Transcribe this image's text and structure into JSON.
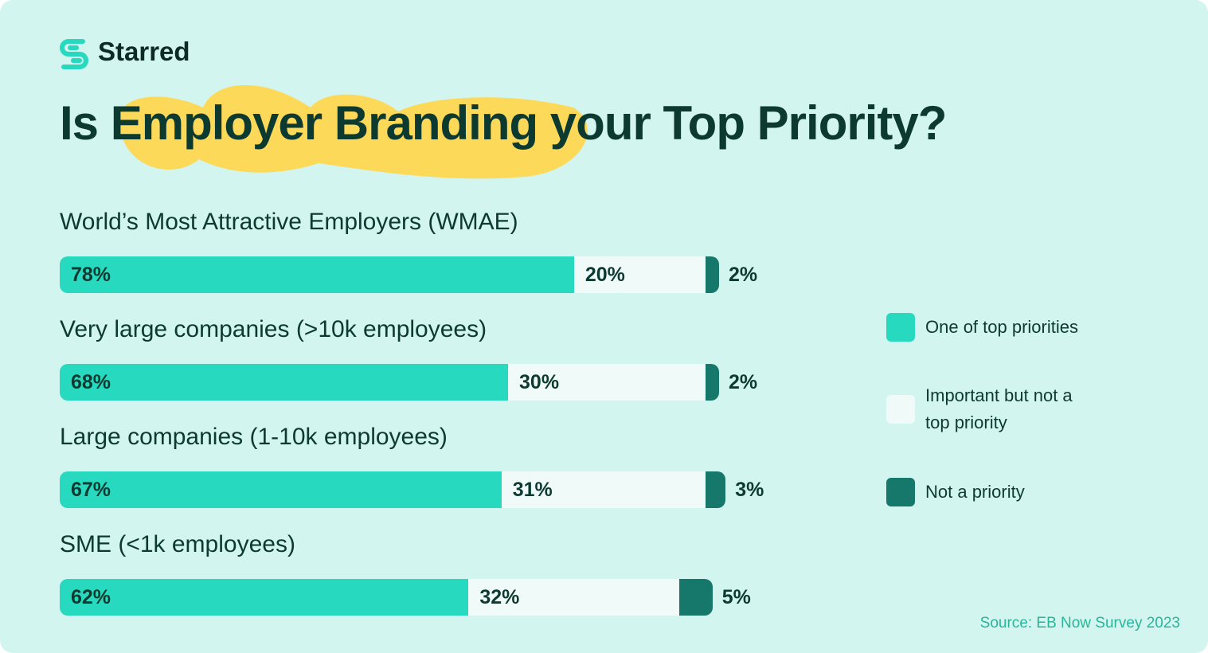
{
  "brand": "Starred",
  "source": "Source: EB Now Survey 2023",
  "chart_data": {
    "type": "bar",
    "orientation": "horizontal",
    "stacked": true,
    "title": "Is Employer Branding your Top Priority?",
    "categories": [
      "World’s Most Attractive Employers (WMAE)",
      "Very large companies (>10k employees)",
      "Large companies (1-10k employees)",
      "SME (<1k employees)"
    ],
    "series": [
      {
        "name": "One of top priorities",
        "color": "#27d9be",
        "values": [
          78,
          68,
          67,
          62
        ],
        "value_labels": [
          "78%",
          "68%",
          "67%",
          "62%"
        ]
      },
      {
        "name": "Important but not a top priority",
        "color": "#f0fbf9",
        "values": [
          20,
          30,
          31,
          32
        ],
        "value_labels": [
          "20%",
          "30%",
          "31%",
          "32%"
        ]
      },
      {
        "name": "Not a priority",
        "color": "#16786a",
        "values": [
          2,
          2,
          3,
          5
        ],
        "value_labels": [
          "2%",
          "2%",
          "3%",
          "5%"
        ]
      }
    ],
    "legend": "right"
  }
}
